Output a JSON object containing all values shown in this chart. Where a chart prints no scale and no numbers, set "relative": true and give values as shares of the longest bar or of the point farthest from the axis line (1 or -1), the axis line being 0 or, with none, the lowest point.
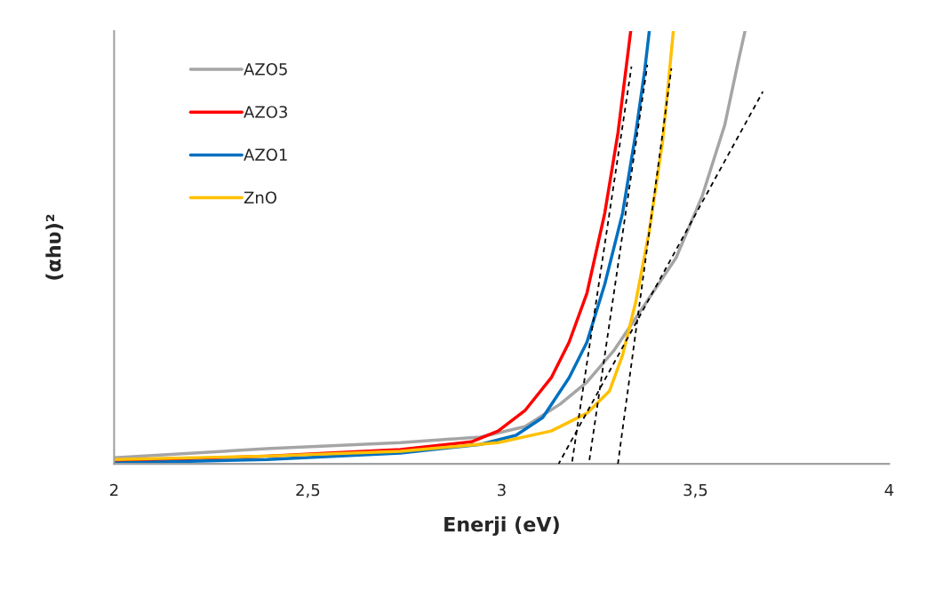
{
  "chart_data": {
    "type": "line",
    "xlabel": "Enerji (eV)",
    "ylabel": "(αhυ)²",
    "relative": true,
    "tick_labels": "x",
    "grid": false,
    "legend": "top left",
    "marker": "none",
    "line_style": "solid",
    "xlim": [
      2,
      4
    ],
    "xticks": [
      2,
      {
        "value": 2.5,
        "label": "2,5"
      },
      3,
      {
        "value": 3.5,
        "label": "3,5"
      },
      4
    ],
    "series": [
      {
        "name": "AZO5",
        "color": "#a5a5a5",
        "x": [
          2.0,
          2.394,
          2.739,
          2.945,
          3.06,
          3.151,
          3.22,
          3.289,
          3.358,
          3.45,
          3.518,
          3.576,
          3.61,
          3.628
        ],
        "values": [
          0.014,
          0.035,
          0.049,
          0.062,
          0.086,
          0.138,
          0.189,
          0.261,
          0.353,
          0.476,
          0.62,
          0.784,
          0.928,
          1.0
        ]
      },
      {
        "name": "AZO3",
        "color": "#ff0000",
        "x": [
          2.0,
          2.394,
          2.739,
          2.922,
          2.991,
          3.06,
          3.128,
          3.174,
          3.22,
          3.266,
          3.3,
          3.323,
          3.333
        ],
        "values": [
          0.006,
          0.018,
          0.033,
          0.051,
          0.076,
          0.123,
          0.199,
          0.281,
          0.394,
          0.579,
          0.764,
          0.928,
          1.0
        ]
      },
      {
        "name": "AZO1",
        "color": "#0070c0",
        "x": [
          2.0,
          2.394,
          2.739,
          2.945,
          3.037,
          3.106,
          3.174,
          3.22,
          3.266,
          3.312,
          3.346,
          3.369,
          3.381
        ],
        "values": [
          0.002,
          0.01,
          0.025,
          0.045,
          0.066,
          0.107,
          0.199,
          0.281,
          0.415,
          0.579,
          0.764,
          0.908,
          1.0
        ]
      },
      {
        "name": "ZnO",
        "color": "#ffc000",
        "x": [
          2.0,
          2.394,
          2.739,
          2.991,
          3.128,
          3.22,
          3.278,
          3.312,
          3.346,
          3.381,
          3.415,
          3.431,
          3.443
        ],
        "values": [
          0.01,
          0.018,
          0.029,
          0.049,
          0.076,
          0.117,
          0.168,
          0.251,
          0.374,
          0.538,
          0.743,
          0.887,
          1.0
        ]
      },
      {
        "type": "line",
        "line_style": "dashed",
        "color": "#000000",
        "x": [
          3.181,
          3.335
        ],
        "values": [
          0,
          0.918
        ]
      },
      {
        "type": "line",
        "line_style": "dashed",
        "color": "#000000",
        "x": [
          3.225,
          3.376
        ],
        "values": [
          0,
          0.922
        ]
      },
      {
        "type": "line",
        "line_style": "dashed",
        "color": "#000000",
        "x": [
          3.3,
          3.438
        ],
        "values": [
          0,
          0.914
        ]
      },
      {
        "type": "line",
        "line_style": "dashed",
        "color": "#000000",
        "x": [
          3.147,
          3.674
        ],
        "values": [
          0,
          0.86
        ]
      }
    ]
  }
}
